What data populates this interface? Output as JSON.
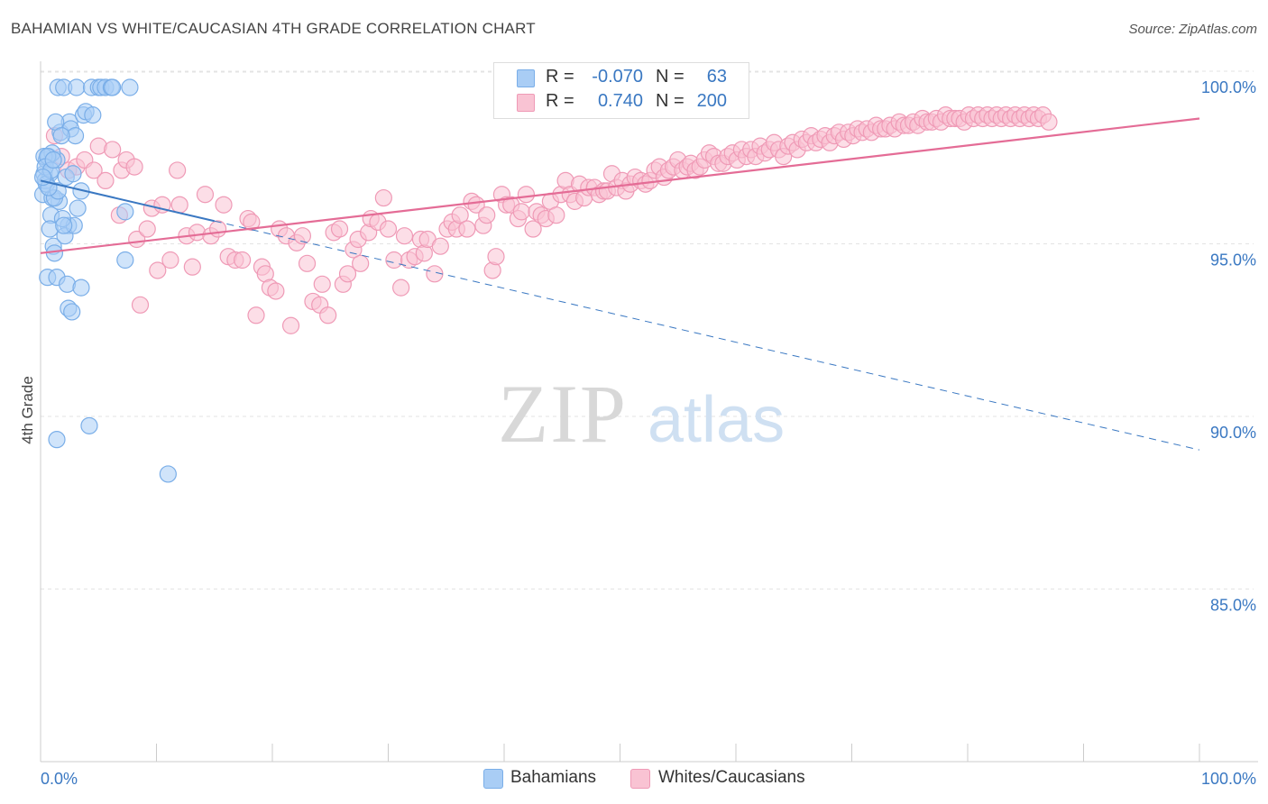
{
  "header": {
    "title": "BAHAMIAN VS WHITE/CAUCASIAN 4TH GRADE CORRELATION CHART",
    "source": "Source: ZipAtlas.com"
  },
  "legend": {
    "rows": [
      {
        "r_label": "R =",
        "r_value": "-0.070",
        "n_label": "N =",
        "n_value": "63",
        "color": "#a9cdf5",
        "border": "#7aaee8"
      },
      {
        "r_label": "R =",
        "r_value": "0.740",
        "n_label": "N =",
        "n_value": "200",
        "color": "#f9c3d3",
        "border": "#ef9ab6"
      }
    ]
  },
  "bottom_legend": [
    {
      "label": "Bahamians",
      "color": "#a9cdf5",
      "border": "#7aaee8"
    },
    {
      "label": "Whites/Caucasians",
      "color": "#f9c3d3",
      "border": "#ef9ab6"
    }
  ],
  "watermark": {
    "zip": "ZIP",
    "atlas": "atlas"
  },
  "chart_data": {
    "type": "scatter",
    "title": "BAHAMIAN VS WHITE/CAUCASIAN 4TH GRADE CORRELATION CHART",
    "xlabel": "",
    "ylabel": "4th Grade",
    "xlim": [
      0,
      100
    ],
    "ylim": [
      80.5,
      100.8
    ],
    "x_tick_labels": [
      "0.0%",
      "100.0%"
    ],
    "y_ticks": [
      100,
      95,
      90,
      85
    ],
    "y_tick_labels": [
      "100.0%",
      "95.0%",
      "90.0%",
      "85.0%"
    ],
    "grid": true,
    "series": [
      {
        "name": "Bahamians",
        "color": "#7aaee8",
        "fill": "#a9cdf5",
        "r": -0.07,
        "n": 63,
        "trend": {
          "x0": 0,
          "y0": 97.3,
          "x1": 100,
          "y1": 89.5,
          "solid_until": 15
        },
        "points": [
          [
            1.5,
            100
          ],
          [
            2.0,
            100
          ],
          [
            3.1,
            100
          ],
          [
            4.4,
            100
          ],
          [
            5.0,
            100
          ],
          [
            5.2,
            100
          ],
          [
            5.6,
            100
          ],
          [
            6.1,
            100
          ],
          [
            6.2,
            100
          ],
          [
            7.7,
            100
          ],
          [
            0.3,
            97.5
          ],
          [
            0.5,
            97.9
          ],
          [
            0.7,
            98.0
          ],
          [
            0.2,
            96.9
          ],
          [
            0.9,
            96.3
          ],
          [
            1.1,
            95.4
          ],
          [
            1.2,
            95.2
          ],
          [
            0.6,
            94.5
          ],
          [
            0.8,
            97.5
          ],
          [
            1.4,
            97.9
          ],
          [
            1.7,
            98.7
          ],
          [
            2.5,
            99.0
          ],
          [
            2.6,
            98.8
          ],
          [
            3.0,
            98.6
          ],
          [
            3.7,
            99.2
          ],
          [
            3.9,
            99.3
          ],
          [
            4.5,
            99.2
          ],
          [
            3.2,
            96.5
          ],
          [
            2.4,
            96.0
          ],
          [
            2.1,
            95.7
          ],
          [
            2.9,
            96.0
          ],
          [
            3.5,
            97.0
          ],
          [
            1.0,
            98.1
          ],
          [
            0.4,
            97.3
          ],
          [
            1.6,
            96.7
          ],
          [
            2.2,
            97.4
          ],
          [
            0.8,
            95.9
          ],
          [
            1.9,
            96.2
          ],
          [
            1.0,
            96.8
          ],
          [
            0.5,
            97.2
          ],
          [
            0.3,
            98.0
          ],
          [
            0.6,
            98.0
          ],
          [
            1.3,
            99.0
          ],
          [
            7.3,
            96.4
          ],
          [
            7.3,
            95.0
          ],
          [
            1.4,
            94.5
          ],
          [
            2.3,
            94.3
          ],
          [
            3.5,
            94.2
          ],
          [
            2.4,
            93.6
          ],
          [
            2.7,
            93.5
          ],
          [
            1.4,
            89.8
          ],
          [
            4.2,
            90.2
          ],
          [
            11.0,
            88.8
          ],
          [
            0.4,
            97.7
          ],
          [
            1.8,
            98.6
          ],
          [
            1.2,
            96.8
          ],
          [
            2.0,
            96.0
          ],
          [
            0.9,
            97.6
          ],
          [
            1.5,
            97.0
          ],
          [
            2.8,
            97.5
          ],
          [
            0.7,
            97.1
          ],
          [
            1.1,
            97.9
          ],
          [
            0.2,
            97.4
          ]
        ]
      },
      {
        "name": "Whites/Caucasians",
        "color": "#ef9ab6",
        "fill": "#f9c3d3",
        "r": 0.74,
        "n": 200,
        "trend": {
          "x0": 0,
          "y0": 95.2,
          "x1": 100,
          "y1": 99.1
        },
        "points": [
          [
            1.2,
            98.6
          ],
          [
            1.8,
            98.0
          ],
          [
            2.4,
            97.6
          ],
          [
            3.1,
            97.7
          ],
          [
            3.8,
            97.9
          ],
          [
            4.6,
            97.6
          ],
          [
            5.0,
            98.3
          ],
          [
            5.6,
            97.3
          ],
          [
            6.2,
            98.2
          ],
          [
            6.8,
            96.3
          ],
          [
            7.0,
            97.6
          ],
          [
            7.4,
            97.9
          ],
          [
            8.1,
            97.7
          ],
          [
            8.3,
            95.6
          ],
          [
            8.6,
            93.7
          ],
          [
            9.2,
            95.9
          ],
          [
            9.6,
            96.5
          ],
          [
            10.1,
            94.7
          ],
          [
            10.5,
            96.6
          ],
          [
            11.2,
            95.0
          ],
          [
            11.8,
            97.6
          ],
          [
            12.0,
            96.6
          ],
          [
            12.6,
            95.7
          ],
          [
            13.1,
            94.8
          ],
          [
            13.5,
            95.8
          ],
          [
            14.2,
            96.9
          ],
          [
            14.7,
            95.7
          ],
          [
            15.3,
            95.9
          ],
          [
            15.8,
            96.6
          ],
          [
            16.2,
            95.1
          ],
          [
            16.8,
            95.0
          ],
          [
            17.4,
            95.0
          ],
          [
            17.9,
            96.2
          ],
          [
            18.2,
            96.1
          ],
          [
            18.6,
            93.4
          ],
          [
            19.1,
            94.8
          ],
          [
            19.4,
            94.6
          ],
          [
            19.8,
            94.2
          ],
          [
            20.3,
            94.1
          ],
          [
            20.6,
            95.9
          ],
          [
            21.2,
            95.7
          ],
          [
            21.6,
            93.1
          ],
          [
            22.1,
            95.5
          ],
          [
            22.6,
            95.7
          ],
          [
            23.0,
            94.9
          ],
          [
            23.5,
            93.8
          ],
          [
            24.1,
            93.7
          ],
          [
            24.3,
            94.3
          ],
          [
            24.8,
            93.4
          ],
          [
            25.3,
            95.8
          ],
          [
            25.8,
            95.9
          ],
          [
            26.1,
            94.3
          ],
          [
            26.5,
            94.6
          ],
          [
            27.0,
            95.3
          ],
          [
            27.4,
            95.6
          ],
          [
            27.6,
            94.9
          ],
          [
            28.3,
            95.8
          ],
          [
            28.5,
            96.2
          ],
          [
            29.1,
            96.1
          ],
          [
            29.6,
            96.8
          ],
          [
            30.0,
            95.9
          ],
          [
            30.5,
            95.0
          ],
          [
            31.1,
            94.2
          ],
          [
            31.4,
            95.7
          ],
          [
            31.8,
            95.0
          ],
          [
            32.3,
            95.1
          ],
          [
            32.8,
            95.6
          ],
          [
            33.1,
            95.2
          ],
          [
            33.4,
            95.6
          ],
          [
            34.0,
            94.6
          ],
          [
            34.5,
            95.4
          ],
          [
            35.1,
            95.9
          ],
          [
            35.5,
            96.1
          ],
          [
            35.9,
            95.9
          ],
          [
            36.2,
            96.3
          ],
          [
            36.8,
            95.9
          ],
          [
            37.2,
            96.7
          ],
          [
            37.6,
            96.6
          ],
          [
            38.2,
            96.0
          ],
          [
            38.5,
            96.3
          ],
          [
            39.0,
            94.7
          ],
          [
            39.3,
            95.1
          ],
          [
            39.8,
            96.9
          ],
          [
            40.2,
            96.6
          ],
          [
            40.6,
            96.6
          ],
          [
            41.2,
            96.2
          ],
          [
            41.5,
            96.4
          ],
          [
            41.9,
            96.9
          ],
          [
            42.5,
            95.9
          ],
          [
            42.8,
            96.4
          ],
          [
            43.2,
            96.3
          ],
          [
            43.6,
            96.2
          ],
          [
            44.0,
            96.7
          ],
          [
            44.5,
            96.3
          ],
          [
            44.9,
            96.9
          ],
          [
            45.3,
            97.3
          ],
          [
            45.7,
            96.9
          ],
          [
            46.1,
            96.7
          ],
          [
            46.5,
            97.2
          ],
          [
            46.9,
            96.8
          ],
          [
            47.3,
            97.1
          ],
          [
            47.8,
            97.1
          ],
          [
            48.2,
            96.9
          ],
          [
            48.6,
            97.0
          ],
          [
            48.9,
            97.0
          ],
          [
            49.3,
            97.5
          ],
          [
            49.7,
            97.1
          ],
          [
            50.2,
            97.3
          ],
          [
            50.5,
            97.0
          ],
          [
            50.9,
            97.2
          ],
          [
            51.3,
            97.4
          ],
          [
            51.8,
            97.3
          ],
          [
            52.2,
            97.2
          ],
          [
            52.6,
            97.3
          ],
          [
            53.0,
            97.6
          ],
          [
            53.4,
            97.7
          ],
          [
            53.8,
            97.4
          ],
          [
            54.2,
            97.6
          ],
          [
            54.6,
            97.7
          ],
          [
            55.0,
            97.9
          ],
          [
            55.4,
            97.6
          ],
          [
            55.8,
            97.7
          ],
          [
            56.1,
            97.8
          ],
          [
            56.5,
            97.6
          ],
          [
            56.9,
            97.7
          ],
          [
            57.3,
            97.9
          ],
          [
            57.7,
            98.1
          ],
          [
            58.1,
            98.0
          ],
          [
            58.5,
            97.8
          ],
          [
            58.9,
            97.8
          ],
          [
            59.3,
            98.0
          ],
          [
            59.7,
            98.1
          ],
          [
            60.1,
            97.9
          ],
          [
            60.5,
            98.2
          ],
          [
            60.9,
            98.0
          ],
          [
            61.3,
            98.2
          ],
          [
            61.7,
            98.0
          ],
          [
            62.1,
            98.3
          ],
          [
            62.5,
            98.1
          ],
          [
            62.9,
            98.2
          ],
          [
            63.3,
            98.4
          ],
          [
            63.7,
            98.2
          ],
          [
            64.1,
            98.0
          ],
          [
            64.5,
            98.3
          ],
          [
            64.9,
            98.4
          ],
          [
            65.3,
            98.2
          ],
          [
            65.7,
            98.5
          ],
          [
            66.1,
            98.4
          ],
          [
            66.5,
            98.6
          ],
          [
            66.9,
            98.4
          ],
          [
            67.3,
            98.5
          ],
          [
            67.7,
            98.6
          ],
          [
            68.1,
            98.4
          ],
          [
            68.5,
            98.6
          ],
          [
            68.9,
            98.7
          ],
          [
            69.3,
            98.5
          ],
          [
            69.7,
            98.7
          ],
          [
            70.1,
            98.6
          ],
          [
            70.5,
            98.8
          ],
          [
            70.9,
            98.7
          ],
          [
            71.3,
            98.8
          ],
          [
            71.7,
            98.7
          ],
          [
            72.1,
            98.9
          ],
          [
            72.5,
            98.8
          ],
          [
            72.9,
            98.8
          ],
          [
            73.3,
            98.9
          ],
          [
            73.7,
            98.8
          ],
          [
            74.1,
            99.0
          ],
          [
            74.5,
            98.9
          ],
          [
            74.9,
            98.9
          ],
          [
            75.3,
            99.0
          ],
          [
            75.7,
            98.9
          ],
          [
            76.1,
            99.1
          ],
          [
            76.5,
            99.0
          ],
          [
            76.9,
            99.0
          ],
          [
            77.3,
            99.1
          ],
          [
            77.7,
            99.0
          ],
          [
            78.1,
            99.2
          ],
          [
            78.5,
            99.1
          ],
          [
            78.9,
            99.1
          ],
          [
            79.3,
            99.1
          ],
          [
            79.7,
            99.0
          ],
          [
            80.1,
            99.2
          ],
          [
            80.5,
            99.1
          ],
          [
            80.9,
            99.2
          ],
          [
            81.3,
            99.1
          ],
          [
            81.7,
            99.2
          ],
          [
            82.1,
            99.1
          ],
          [
            82.5,
            99.2
          ],
          [
            82.9,
            99.1
          ],
          [
            83.3,
            99.2
          ],
          [
            83.7,
            99.1
          ],
          [
            84.1,
            99.2
          ],
          [
            84.5,
            99.1
          ],
          [
            84.9,
            99.2
          ],
          [
            85.3,
            99.1
          ],
          [
            85.7,
            99.2
          ],
          [
            86.1,
            99.1
          ],
          [
            86.5,
            99.2
          ],
          [
            87.0,
            99.0
          ]
        ]
      }
    ]
  }
}
